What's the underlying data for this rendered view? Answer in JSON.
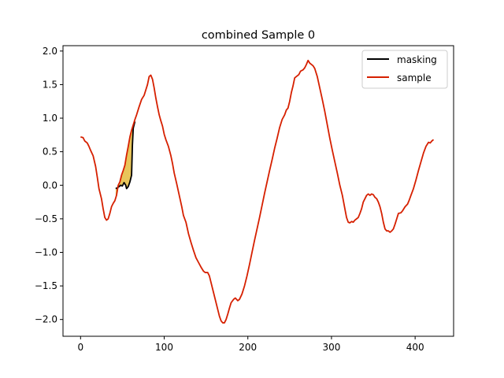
{
  "chart_data": {
    "type": "line",
    "title": "combined Sample 0",
    "xlabel": "",
    "ylabel": "",
    "xlim": [
      -21,
      446
    ],
    "ylim": [
      -2.25,
      2.08
    ],
    "xticks": [
      0,
      100,
      200,
      300,
      400
    ],
    "xtick_labels": [
      "0",
      "100",
      "200",
      "300",
      "400"
    ],
    "yticks": [
      -2.0,
      -1.5,
      -1.0,
      -0.5,
      0.0,
      0.5,
      1.0,
      1.5,
      2.0
    ],
    "ytick_labels": [
      "−2.0",
      "−1.5",
      "−1.0",
      "−0.5",
      "0.0",
      "0.5",
      "1.0",
      "1.5",
      "2.0"
    ],
    "grid": false,
    "legend": "top-right",
    "fill_color": "#e8c55a",
    "series": [
      {
        "name": "masking",
        "color": "#000000",
        "points": [
          [
            42,
            -0.05
          ],
          [
            45,
            -0.03
          ],
          [
            48,
            0.0
          ],
          [
            50,
            -0.01
          ],
          [
            52,
            0.04
          ],
          [
            54,
            0.0
          ],
          [
            55,
            -0.05
          ],
          [
            57,
            -0.02
          ],
          [
            59,
            0.05
          ],
          [
            61,
            0.15
          ],
          [
            62,
            0.6
          ],
          [
            63,
            0.85
          ],
          [
            65,
            0.95
          ]
        ]
      },
      {
        "name": "sample",
        "color": "#d62000",
        "points": [
          [
            0,
            0.72
          ],
          [
            3,
            0.71
          ],
          [
            5,
            0.66
          ],
          [
            8,
            0.63
          ],
          [
            10,
            0.58
          ],
          [
            12,
            0.52
          ],
          [
            15,
            0.44
          ],
          [
            18,
            0.28
          ],
          [
            20,
            0.12
          ],
          [
            22,
            -0.05
          ],
          [
            25,
            -0.2
          ],
          [
            27,
            -0.35
          ],
          [
            29,
            -0.48
          ],
          [
            31,
            -0.52
          ],
          [
            33,
            -0.5
          ],
          [
            35,
            -0.42
          ],
          [
            37,
            -0.32
          ],
          [
            39,
            -0.27
          ],
          [
            41,
            -0.23
          ],
          [
            43,
            -0.15
          ],
          [
            45,
            0.0
          ],
          [
            47,
            0.05
          ],
          [
            49,
            0.15
          ],
          [
            51,
            0.22
          ],
          [
            53,
            0.3
          ],
          [
            55,
            0.45
          ],
          [
            57,
            0.58
          ],
          [
            59,
            0.72
          ],
          [
            61,
            0.82
          ],
          [
            63,
            0.9
          ],
          [
            65,
            0.98
          ],
          [
            67,
            1.05
          ],
          [
            70,
            1.17
          ],
          [
            73,
            1.28
          ],
          [
            76,
            1.34
          ],
          [
            78,
            1.42
          ],
          [
            80,
            1.5
          ],
          [
            82,
            1.62
          ],
          [
            84,
            1.64
          ],
          [
            86,
            1.58
          ],
          [
            88,
            1.45
          ],
          [
            90,
            1.3
          ],
          [
            92,
            1.17
          ],
          [
            94,
            1.05
          ],
          [
            96,
            0.96
          ],
          [
            98,
            0.88
          ],
          [
            100,
            0.76
          ],
          [
            102,
            0.68
          ],
          [
            105,
            0.58
          ],
          [
            108,
            0.44
          ],
          [
            110,
            0.32
          ],
          [
            112,
            0.18
          ],
          [
            115,
            0.02
          ],
          [
            118,
            -0.15
          ],
          [
            121,
            -0.32
          ],
          [
            123,
            -0.45
          ],
          [
            126,
            -0.55
          ],
          [
            129,
            -0.72
          ],
          [
            132,
            -0.85
          ],
          [
            135,
            -0.97
          ],
          [
            138,
            -1.08
          ],
          [
            141,
            -1.15
          ],
          [
            144,
            -1.22
          ],
          [
            147,
            -1.28
          ],
          [
            149,
            -1.3
          ],
          [
            152,
            -1.3
          ],
          [
            154,
            -1.35
          ],
          [
            156,
            -1.45
          ],
          [
            158,
            -1.55
          ],
          [
            160,
            -1.65
          ],
          [
            162,
            -1.75
          ],
          [
            164,
            -1.85
          ],
          [
            166,
            -1.95
          ],
          [
            168,
            -2.02
          ],
          [
            170,
            -2.05
          ],
          [
            172,
            -2.05
          ],
          [
            174,
            -2.0
          ],
          [
            176,
            -1.92
          ],
          [
            178,
            -1.83
          ],
          [
            180,
            -1.75
          ],
          [
            183,
            -1.7
          ],
          [
            185,
            -1.68
          ],
          [
            188,
            -1.72
          ],
          [
            190,
            -1.7
          ],
          [
            193,
            -1.62
          ],
          [
            196,
            -1.5
          ],
          [
            199,
            -1.35
          ],
          [
            202,
            -1.18
          ],
          [
            205,
            -1.0
          ],
          [
            208,
            -0.82
          ],
          [
            211,
            -0.65
          ],
          [
            214,
            -0.48
          ],
          [
            217,
            -0.3
          ],
          [
            220,
            -0.12
          ],
          [
            223,
            0.05
          ],
          [
            226,
            0.22
          ],
          [
            229,
            0.38
          ],
          [
            232,
            0.55
          ],
          [
            235,
            0.7
          ],
          [
            238,
            0.86
          ],
          [
            241,
            0.98
          ],
          [
            244,
            1.05
          ],
          [
            246,
            1.12
          ],
          [
            248,
            1.15
          ],
          [
            250,
            1.25
          ],
          [
            252,
            1.38
          ],
          [
            254,
            1.48
          ],
          [
            256,
            1.6
          ],
          [
            258,
            1.62
          ],
          [
            261,
            1.65
          ],
          [
            263,
            1.7
          ],
          [
            266,
            1.72
          ],
          [
            268,
            1.75
          ],
          [
            270,
            1.8
          ],
          [
            272,
            1.86
          ],
          [
            274,
            1.82
          ],
          [
            276,
            1.8
          ],
          [
            278,
            1.78
          ],
          [
            280,
            1.74
          ],
          [
            283,
            1.62
          ],
          [
            286,
            1.45
          ],
          [
            289,
            1.28
          ],
          [
            292,
            1.1
          ],
          [
            295,
            0.9
          ],
          [
            298,
            0.7
          ],
          [
            301,
            0.52
          ],
          [
            304,
            0.35
          ],
          [
            307,
            0.18
          ],
          [
            310,
            0.0
          ],
          [
            313,
            -0.15
          ],
          [
            316,
            -0.35
          ],
          [
            318,
            -0.48
          ],
          [
            320,
            -0.55
          ],
          [
            322,
            -0.56
          ],
          [
            324,
            -0.54
          ],
          [
            326,
            -0.55
          ],
          [
            328,
            -0.52
          ],
          [
            330,
            -0.5
          ],
          [
            332,
            -0.48
          ],
          [
            334,
            -0.42
          ],
          [
            336,
            -0.35
          ],
          [
            338,
            -0.25
          ],
          [
            340,
            -0.2
          ],
          [
            342,
            -0.15
          ],
          [
            344,
            -0.13
          ],
          [
            346,
            -0.15
          ],
          [
            348,
            -0.13
          ],
          [
            350,
            -0.14
          ],
          [
            352,
            -0.18
          ],
          [
            354,
            -0.2
          ],
          [
            356,
            -0.25
          ],
          [
            358,
            -0.32
          ],
          [
            360,
            -0.42
          ],
          [
            362,
            -0.55
          ],
          [
            364,
            -0.65
          ],
          [
            366,
            -0.68
          ],
          [
            368,
            -0.68
          ],
          [
            370,
            -0.7
          ],
          [
            372,
            -0.68
          ],
          [
            374,
            -0.65
          ],
          [
            376,
            -0.58
          ],
          [
            378,
            -0.5
          ],
          [
            380,
            -0.42
          ],
          [
            383,
            -0.41
          ],
          [
            385,
            -0.38
          ],
          [
            388,
            -0.32
          ],
          [
            391,
            -0.28
          ],
          [
            393,
            -0.22
          ],
          [
            395,
            -0.15
          ],
          [
            398,
            -0.05
          ],
          [
            401,
            0.08
          ],
          [
            404,
            0.22
          ],
          [
            407,
            0.35
          ],
          [
            410,
            0.48
          ],
          [
            413,
            0.58
          ],
          [
            416,
            0.64
          ],
          [
            418,
            0.63
          ],
          [
            420,
            0.66
          ],
          [
            422,
            0.68
          ]
        ]
      }
    ]
  }
}
